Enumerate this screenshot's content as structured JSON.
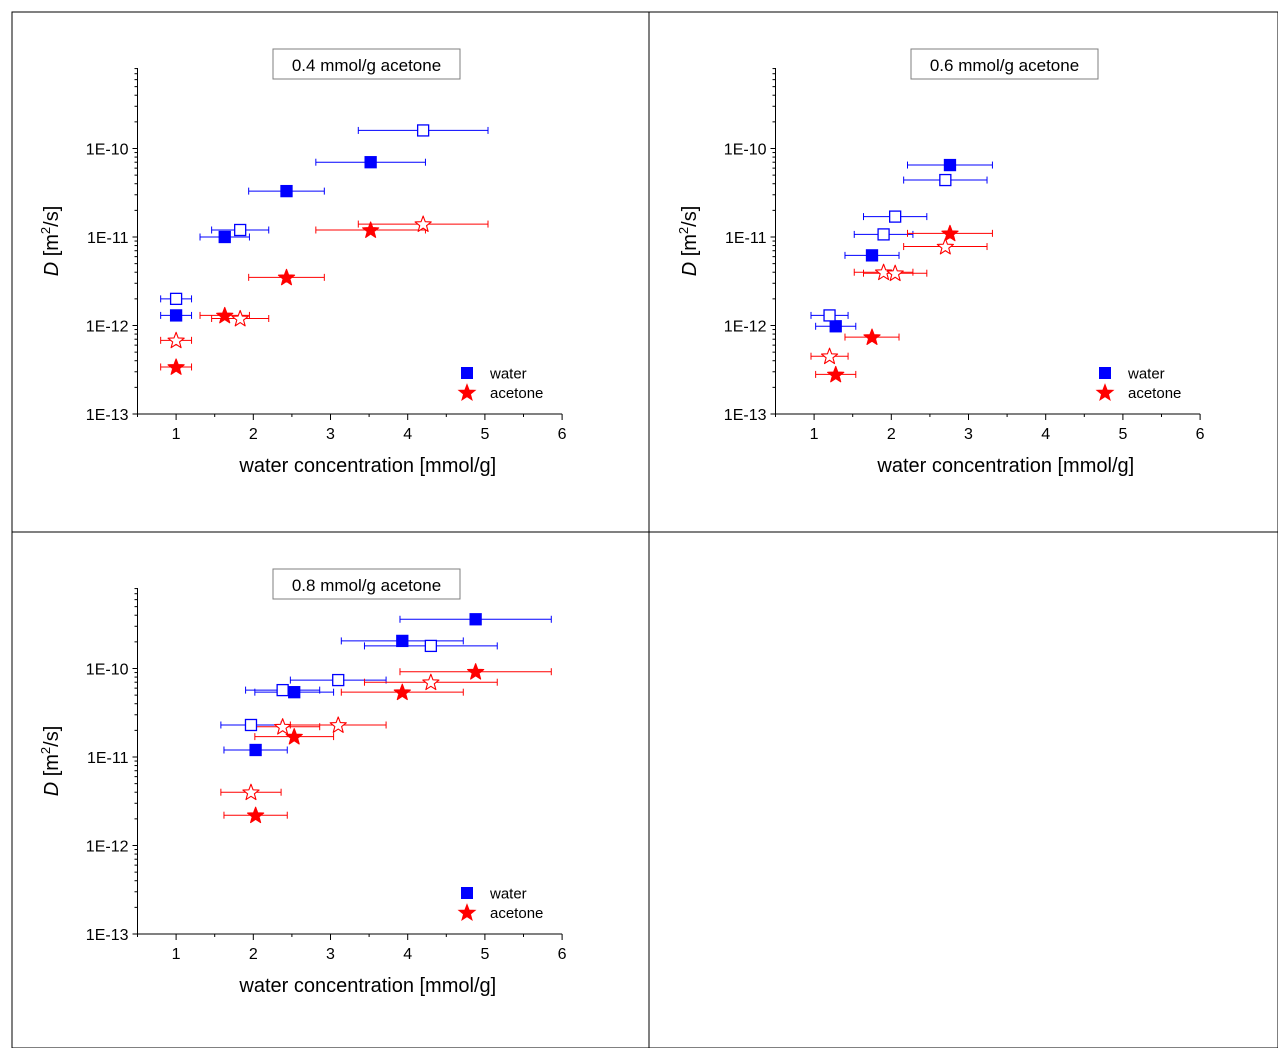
{
  "chart_data": [
    {
      "type": "scatter",
      "title": "0.4 mmol/g acetone",
      "xlabel": "water concentration [mmol/g]",
      "ylabel_italic": "D",
      "ylabel_rest": " [m",
      "ylabel_sup": "2",
      "ylabel_end": "/s]",
      "xlim": [
        0.5,
        6
      ],
      "ylim": [
        1e-13,
        1e-09
      ],
      "yscale": "log",
      "x_ticks": [
        "1",
        "2",
        "3",
        "4",
        "5",
        "6"
      ],
      "y_ticks": [
        "1E-13",
        "1E-12",
        "1E-11",
        "1E-10"
      ],
      "legend_position": "bottom-right",
      "series": [
        {
          "name": "water",
          "color": "#0000ff",
          "marker": "square",
          "filled": true,
          "points": [
            {
              "x": 1.0,
              "y": 1.3e-12,
              "xerr": 0.2
            },
            {
              "x": 1.63,
              "y": 1e-11,
              "xerr": 0.32
            },
            {
              "x": 2.43,
              "y": 3.3e-11,
              "xerr": 0.49
            },
            {
              "x": 3.52,
              "y": 7e-11,
              "xerr": 0.71
            }
          ]
        },
        {
          "color": "#0000ff",
          "marker": "square",
          "filled": false,
          "points": [
            {
              "x": 1.0,
              "y": 2e-12,
              "xerr": 0.2
            },
            {
              "x": 1.83,
              "y": 1.2e-11,
              "xerr": 0.37
            },
            {
              "x": 4.2,
              "y": 1.6e-10,
              "xerr": 0.84
            }
          ]
        },
        {
          "name": "acetone",
          "color": "#ff0000",
          "marker": "star",
          "filled": true,
          "points": [
            {
              "x": 1.0,
              "y": 3.4e-13,
              "xerr": 0.2
            },
            {
              "x": 1.63,
              "y": 1.3e-12,
              "xerr": 0.32
            },
            {
              "x": 2.43,
              "y": 3.5e-12,
              "xerr": 0.49
            },
            {
              "x": 3.52,
              "y": 1.2e-11,
              "xerr": 0.71
            }
          ]
        },
        {
          "color": "#ff0000",
          "marker": "star",
          "filled": false,
          "points": [
            {
              "x": 1.0,
              "y": 6.8e-13,
              "xerr": 0.2
            },
            {
              "x": 1.83,
              "y": 1.2e-12,
              "xerr": 0.37
            },
            {
              "x": 4.2,
              "y": 1.4e-11,
              "xerr": 0.84
            }
          ]
        }
      ]
    },
    {
      "type": "scatter",
      "title": "0.6 mmol/g acetone",
      "xlabel": "water concentration [mmol/g]",
      "ylabel_italic": "D",
      "ylabel_rest": " [m",
      "ylabel_sup": "2",
      "ylabel_end": "/s]",
      "xlim": [
        0.5,
        6
      ],
      "ylim": [
        1e-13,
        1e-09
      ],
      "yscale": "log",
      "x_ticks": [
        "1",
        "2",
        "3",
        "4",
        "5",
        "6"
      ],
      "y_ticks": [
        "1E-13",
        "1E-12",
        "1E-11",
        "1E-10"
      ],
      "legend_position": "bottom-right",
      "series": [
        {
          "name": "water",
          "color": "#0000ff",
          "marker": "square",
          "filled": true,
          "points": [
            {
              "x": 1.28,
              "y": 9.8e-13,
              "xerr": 0.26
            },
            {
              "x": 1.75,
              "y": 6.2e-12,
              "xerr": 0.35
            },
            {
              "x": 2.76,
              "y": 6.5e-11,
              "xerr": 0.55
            }
          ]
        },
        {
          "color": "#0000ff",
          "marker": "square",
          "filled": false,
          "points": [
            {
              "x": 1.2,
              "y": 1.3e-12,
              "xerr": 0.24
            },
            {
              "x": 1.9,
              "y": 1.07e-11,
              "xerr": 0.38
            },
            {
              "x": 2.05,
              "y": 1.7e-11,
              "xerr": 0.41
            },
            {
              "x": 2.7,
              "y": 4.4e-11,
              "xerr": 0.54
            }
          ]
        },
        {
          "name": "acetone",
          "color": "#ff0000",
          "marker": "star",
          "filled": true,
          "points": [
            {
              "x": 1.28,
              "y": 2.8e-13,
              "xerr": 0.26
            },
            {
              "x": 1.75,
              "y": 7.4e-13,
              "xerr": 0.35
            },
            {
              "x": 2.76,
              "y": 1.1e-11,
              "xerr": 0.55
            }
          ]
        },
        {
          "color": "#ff0000",
          "marker": "star",
          "filled": false,
          "points": [
            {
              "x": 1.2,
              "y": 4.5e-13,
              "xerr": 0.24
            },
            {
              "x": 1.9,
              "y": 4e-12,
              "xerr": 0.38
            },
            {
              "x": 2.05,
              "y": 3.9e-12,
              "xerr": 0.41
            },
            {
              "x": 2.7,
              "y": 7.8e-12,
              "xerr": 0.54
            }
          ]
        }
      ]
    },
    {
      "type": "scatter",
      "title": "0.8 mmol/g acetone",
      "xlabel": "water concentration [mmol/g]",
      "ylabel_italic": "D",
      "ylabel_rest": " [m",
      "ylabel_sup": "2",
      "ylabel_end": "/s]",
      "xlim": [
        0.5,
        6
      ],
      "ylim": [
        1e-13,
        1e-09
      ],
      "yscale": "log",
      "x_ticks": [
        "1",
        "2",
        "3",
        "4",
        "5",
        "6"
      ],
      "y_ticks": [
        "1E-13",
        "1E-12",
        "1E-11",
        "1E-10"
      ],
      "legend_position": "bottom-right",
      "series": [
        {
          "name": "water",
          "color": "#0000ff",
          "marker": "square",
          "filled": true,
          "points": [
            {
              "x": 2.03,
              "y": 1.2e-11,
              "xerr": 0.41
            },
            {
              "x": 2.53,
              "y": 5.4e-11,
              "xerr": 0.51
            },
            {
              "x": 3.93,
              "y": 2.05e-10,
              "xerr": 0.79
            },
            {
              "x": 4.88,
              "y": 3.6e-10,
              "xerr": 0.98
            }
          ]
        },
        {
          "color": "#0000ff",
          "marker": "square",
          "filled": false,
          "points": [
            {
              "x": 1.97,
              "y": 2.3e-11,
              "xerr": 0.39
            },
            {
              "x": 2.38,
              "y": 5.7e-11,
              "xerr": 0.48
            },
            {
              "x": 3.1,
              "y": 7.4e-11,
              "xerr": 0.62
            },
            {
              "x": 4.3,
              "y": 1.8e-10,
              "xerr": 0.86
            }
          ]
        },
        {
          "name": "acetone",
          "color": "#ff0000",
          "marker": "star",
          "filled": true,
          "points": [
            {
              "x": 2.03,
              "y": 2.2e-12,
              "xerr": 0.41
            },
            {
              "x": 2.53,
              "y": 1.7e-11,
              "xerr": 0.51
            },
            {
              "x": 3.93,
              "y": 5.4e-11,
              "xerr": 0.79
            },
            {
              "x": 4.88,
              "y": 9.2e-11,
              "xerr": 0.98
            }
          ]
        },
        {
          "color": "#ff0000",
          "marker": "star",
          "filled": false,
          "points": [
            {
              "x": 1.97,
              "y": 4e-12,
              "xerr": 0.39
            },
            {
              "x": 2.38,
              "y": 2.2e-11,
              "xerr": 0.48
            },
            {
              "x": 3.1,
              "y": 2.3e-11,
              "xerr": 0.62
            },
            {
              "x": 4.3,
              "y": 7e-11,
              "xerr": 0.86
            }
          ]
        }
      ]
    }
  ]
}
